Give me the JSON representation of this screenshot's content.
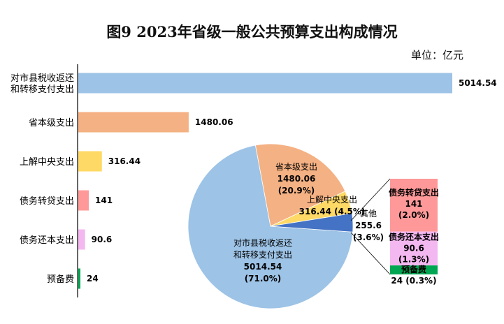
{
  "chart_data": [
    {
      "type": "bar",
      "orientation": "horizontal",
      "title": "图9 2023年省级一般公共预算支出构成情况",
      "unit": "单位：亿元",
      "categories": [
        "对市县税收返还和转移支付支出",
        "省本级支出",
        "上解中央支出",
        "债务转贷支出",
        "债务还本支出",
        "预备费"
      ],
      "category_lines": [
        [
          "对市县税收返还",
          "和转移支付支出"
        ],
        [
          "省本级支出"
        ],
        [
          "上解中央支出"
        ],
        [
          "债务转贷支出"
        ],
        [
          "债务还本支出"
        ],
        [
          "预备费"
        ]
      ],
      "values": [
        5014.54,
        1480.06,
        316.44,
        141,
        90.6,
        24
      ],
      "value_labels": [
        "5014.54",
        "1480.06",
        "316.44",
        "141",
        "90.6",
        "24"
      ],
      "colors": [
        "#9DC3E6",
        "#F4B183",
        "#FFD966",
        "#FF9999",
        "#F4B8F0",
        "#00A651"
      ]
    },
    {
      "type": "pie",
      "slices": [
        {
          "name": "对市县税收返还和转移支付支出",
          "label_lines": [
            "对市县税收返还",
            "和转移支付支出"
          ],
          "value": 5014.54,
          "value_label": "5014.54",
          "percent": 71.0,
          "percent_label": "(71.0%)",
          "color": "#9DC3E6"
        },
        {
          "name": "省本级支出",
          "label_lines": [
            "省本级支出"
          ],
          "value": 1480.06,
          "value_label": "1480.06",
          "percent": 20.9,
          "percent_label": "(20.9%)",
          "color": "#F4B183"
        },
        {
          "name": "上解中央支出",
          "label_lines": [
            "上解中央支出"
          ],
          "value": 316.44,
          "value_label": "316.44 (4.5%)",
          "percent": 4.5,
          "color": "#FFD966"
        },
        {
          "name": "其他",
          "label_lines": [
            "其他"
          ],
          "value": 255.6,
          "value_label": "255.6",
          "percent": 3.6,
          "percent_label": "(3.6%)",
          "color": "#4472C4"
        }
      ]
    },
    {
      "type": "bar",
      "orientation": "stacked",
      "breakdown_of": "其他",
      "segments": [
        {
          "name": "债务转贷支出",
          "value": 141,
          "value_label": "141",
          "percent_label": "(2.0%)",
          "color": "#FF9999"
        },
        {
          "name": "债务还本支出",
          "value": 90.6,
          "value_label": "90.6",
          "percent_label": "(1.3%)",
          "color": "#F4B8F0"
        },
        {
          "name": "预备费",
          "value": 24,
          "value_label": "24  (0.3%)",
          "color": "#00A651"
        }
      ]
    }
  ]
}
